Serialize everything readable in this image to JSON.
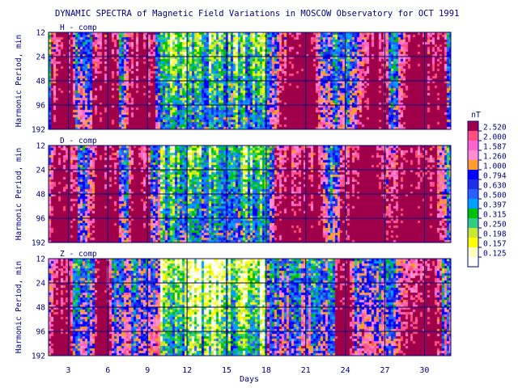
{
  "chart_data": {
    "type": "heatmap",
    "title": "DYNAMIC SPECTRA of Magnetic Field Variations in MOSCOW Observatory for OCT 1991",
    "xlabel": "Days",
    "ylabel": "Harmonic Period, min",
    "x_range": [
      1.5,
      32
    ],
    "x_ticks": [
      3,
      6,
      9,
      12,
      15,
      18,
      21,
      24,
      27,
      30
    ],
    "y_scale": "log2",
    "y_ticks": [
      12,
      24,
      48,
      96,
      192
    ],
    "panels": [
      {
        "label": "H - comp",
        "active_spans": [
          [
            2.0,
            3.2
          ],
          [
            5.2,
            6.4
          ],
          [
            7.8,
            9.2
          ],
          [
            19.2,
            21.8
          ],
          [
            25.2,
            27.0
          ],
          [
            28.4,
            30.2
          ],
          [
            30.6,
            31.4
          ]
        ]
      },
      {
        "label": "D - comp",
        "active_spans": [
          [
            1.8,
            3.4
          ],
          [
            5.0,
            6.5
          ],
          [
            7.9,
            8.9
          ],
          [
            19.0,
            22.2
          ],
          [
            24.0,
            27.5
          ],
          [
            28.0,
            31.2
          ]
        ]
      },
      {
        "label": "Z - comp",
        "active_spans": [
          [
            2.0,
            3.0
          ],
          [
            5.4,
            6.0
          ],
          [
            23.6,
            24.4
          ],
          [
            28.6,
            31.0
          ]
        ]
      }
    ],
    "colorbar": {
      "unit": "nT",
      "levels": [
        "2.520",
        "2.000",
        "1.587",
        "1.260",
        "1.000",
        "0.794",
        "0.630",
        "0.500",
        "0.397",
        "0.315",
        "0.250",
        "0.198",
        "0.157",
        "0.125"
      ],
      "colors": [
        "#a0004a",
        "#ff4f7c",
        "#ff66cc",
        "#ff8ecf",
        "#ff9c2a",
        "#0000ff",
        "#1e30e6",
        "#2a60ff",
        "#00a0ff",
        "#00c000",
        "#30cc80",
        "#c8e832",
        "#ffff00",
        "#ffffc0",
        "#ffffff"
      ]
    }
  }
}
